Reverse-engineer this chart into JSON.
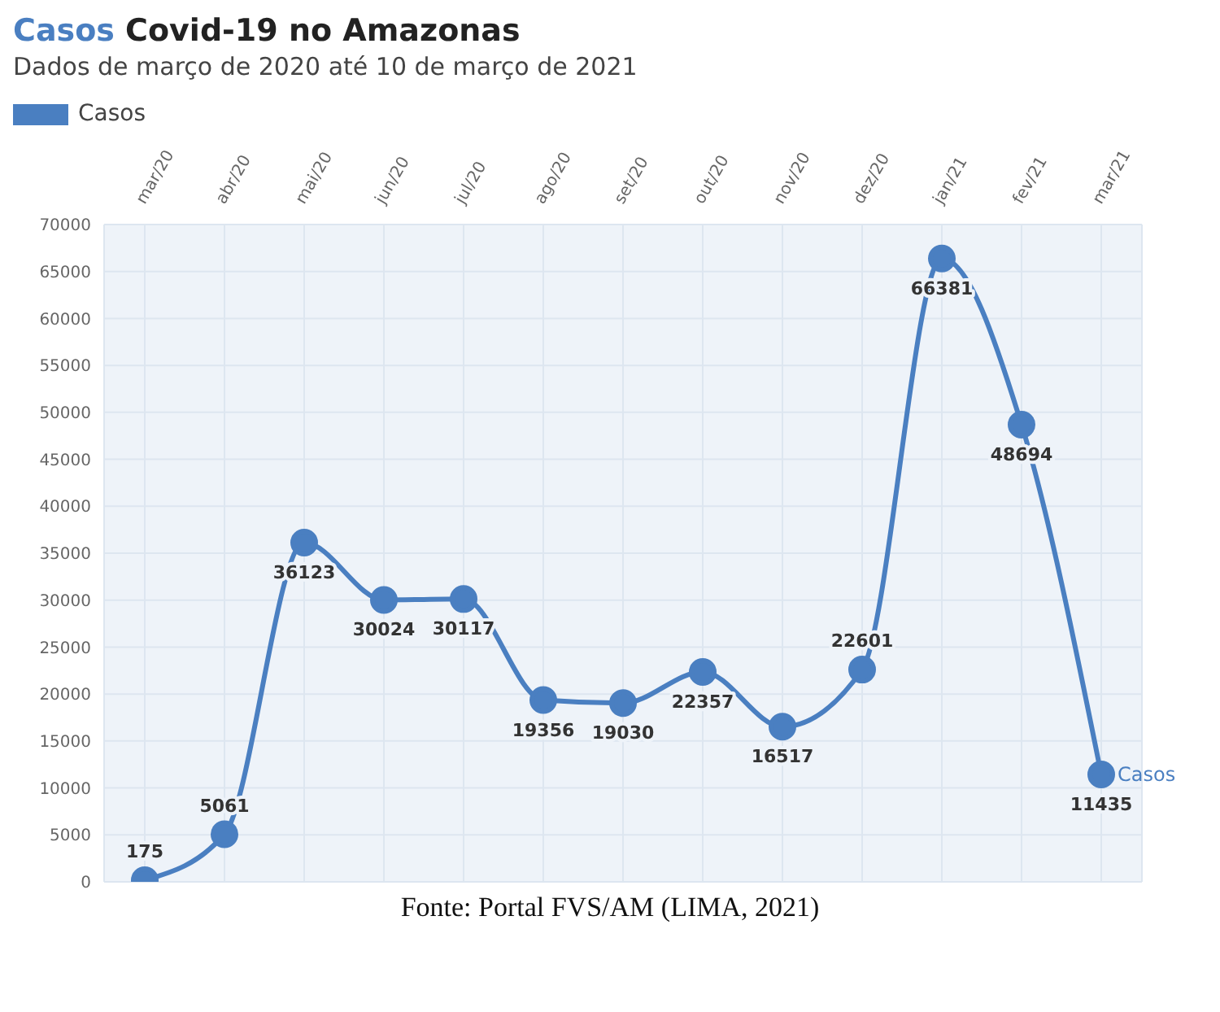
{
  "chart_data": {
    "type": "line",
    "title": "Casos Covid-19 no Amazonas",
    "subtitle": "Dados de março de 2020 até 10 de março de 2021",
    "categories": [
      "mar/20",
      "abr/20",
      "mai/20",
      "jun/20",
      "jul/20",
      "ago/20",
      "set/20",
      "out/20",
      "nov/20",
      "dez/20",
      "jan/21",
      "fev/21",
      "mar/21"
    ],
    "series": [
      {
        "name": "Casos",
        "color": "#4a7fc1",
        "values": [
          175,
          5061,
          36123,
          30024,
          30117,
          19356,
          19030,
          22357,
          16517,
          22601,
          66381,
          48694,
          11435
        ]
      }
    ],
    "ylim": [
      0,
      70000
    ],
    "yticks": [
      0,
      5000,
      10000,
      15000,
      20000,
      25000,
      30000,
      35000,
      40000,
      45000,
      50000,
      55000,
      60000,
      65000,
      70000
    ],
    "grid": true,
    "legend": "top left",
    "marker": "circle",
    "line_style": "solid",
    "data_labels": true,
    "annotations": [
      "Fonte: Portal FVS/AM (LIMA, 2021)"
    ]
  }
}
